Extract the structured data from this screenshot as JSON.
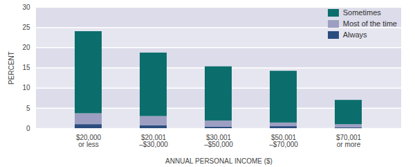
{
  "chart_data": {
    "type": "bar",
    "stacked": true,
    "grid": true,
    "legend": "top-right",
    "x_label": "ANNUAL PERSONAL INCOME ($)",
    "y_label": "PERCENT",
    "categories": [
      "$20,000\nor less",
      "$20,001\n–$30,000",
      "$30,001\n–$50,000",
      "$50,001\n–$70,000",
      "$70,001\nor more"
    ],
    "series": [
      {
        "name": "Always",
        "color": "#2b4d7e",
        "values": [
          1.0,
          0.7,
          0.4,
          0.5,
          0.2
        ]
      },
      {
        "name": "Most of the time",
        "color": "#9d9fc2",
        "values": [
          2.7,
          2.3,
          1.5,
          0.9,
          0.8
        ]
      },
      {
        "name": "Sometimes",
        "color": "#0b6e6c",
        "values": [
          20.3,
          15.7,
          13.4,
          12.8,
          6.0
        ]
      }
    ],
    "ylim": [
      0,
      30
    ],
    "yticks": [
      0,
      5,
      10,
      15,
      20,
      25,
      30
    ]
  }
}
